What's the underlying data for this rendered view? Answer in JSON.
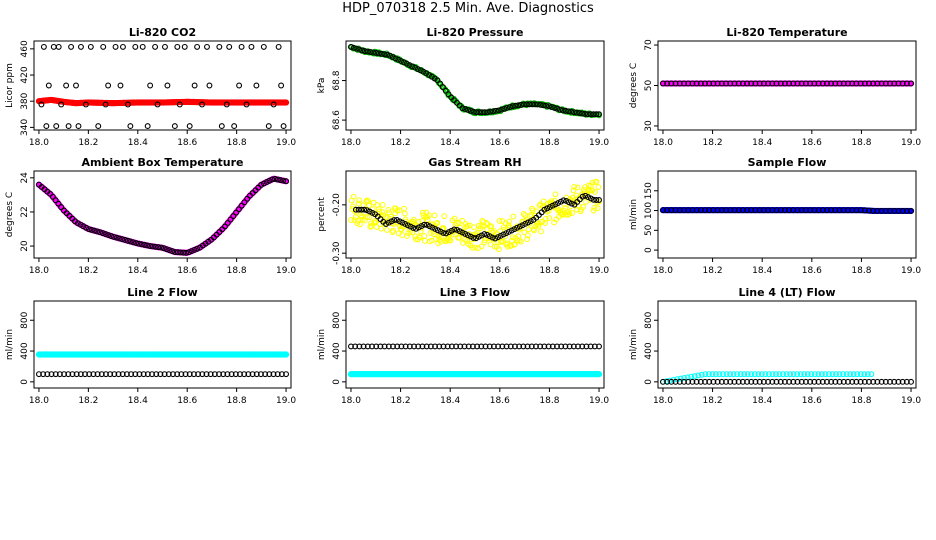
{
  "page": {
    "title": "HDP_070318  2.5 Min. Ave. Diagnostics"
  },
  "chart_data": [
    {
      "type": "scatter",
      "title": "Li-820 CO2",
      "xlabel": "",
      "ylabel": "Licor ppm",
      "xlim": [
        17.98,
        19.02
      ],
      "ylim": [
        336,
        472
      ],
      "xticks": [
        "18.0",
        "18.2",
        "18.4",
        "18.6",
        "18.8",
        "19.0"
      ],
      "yticks": [
        "340",
        "380",
        "420",
        "460"
      ],
      "grid": false,
      "series": [
        {
          "style": "dense-filled",
          "color": "#ff0000",
          "x": [
            18.0,
            18.05,
            18.1,
            18.15,
            18.2,
            18.3,
            18.4,
            18.5,
            18.6,
            18.7,
            18.8,
            18.9,
            19.0
          ],
          "y": [
            380,
            382,
            379,
            377,
            378,
            377,
            378,
            378,
            379,
            378,
            378,
            378,
            378
          ]
        },
        {
          "style": "open-circle",
          "color": "#000000",
          "x": [
            18.02,
            18.06,
            18.08,
            18.13,
            18.17,
            18.21,
            18.26,
            18.31,
            18.34,
            18.39,
            18.42,
            18.47,
            18.51,
            18.56,
            18.59,
            18.64,
            18.68,
            18.73,
            18.77,
            18.82,
            18.86,
            18.91,
            18.97,
            18.04,
            18.11,
            18.15,
            18.28,
            18.33,
            18.45,
            18.52,
            18.63,
            18.69,
            18.81,
            18.88,
            18.98,
            18.03,
            18.07,
            18.12,
            18.16,
            18.24,
            18.37,
            18.44,
            18.55,
            18.61,
            18.74,
            18.79,
            18.93,
            18.99,
            18.01,
            18.09,
            18.19,
            18.27,
            18.36,
            18.48,
            18.57,
            18.66,
            18.76,
            18.84,
            18.95
          ],
          "y": [
            463,
            463,
            463,
            463,
            463,
            463,
            463,
            463,
            463,
            463,
            463,
            463,
            463,
            463,
            463,
            463,
            463,
            463,
            463,
            463,
            463,
            463,
            463,
            404,
            404,
            404,
            404,
            404,
            404,
            404,
            404,
            404,
            404,
            404,
            404,
            342,
            342,
            342,
            342,
            342,
            342,
            342,
            342,
            342,
            342,
            342,
            342,
            342,
            375,
            375,
            375,
            375,
            375,
            375,
            375,
            375,
            375,
            375,
            375
          ]
        }
      ]
    },
    {
      "type": "scatter",
      "title": "Li-820 Pressure",
      "xlabel": "",
      "ylabel": "kPa",
      "xlim": [
        17.98,
        19.02
      ],
      "ylim": [
        68.55,
        69.0
      ],
      "xticks": [
        "18.0",
        "18.2",
        "18.4",
        "18.6",
        "18.8",
        "19.0"
      ],
      "yticks": [
        "68.6",
        "68.8"
      ],
      "grid": false,
      "series": [
        {
          "style": "dense-open",
          "color": "#00bb00",
          "x": [
            18.0,
            18.05,
            18.1,
            18.15,
            18.2,
            18.25,
            18.3,
            18.35,
            18.4,
            18.45,
            18.5,
            18.55,
            18.6,
            18.65,
            18.7,
            18.75,
            18.8,
            18.85,
            18.9,
            18.95,
            19.0
          ],
          "y": [
            68.97,
            68.95,
            68.94,
            68.93,
            68.9,
            68.87,
            68.84,
            68.8,
            68.72,
            68.66,
            68.64,
            68.64,
            68.65,
            68.67,
            68.68,
            68.68,
            68.67,
            68.65,
            68.64,
            68.63,
            68.63
          ]
        },
        {
          "style": "open-circle",
          "color": "#000000",
          "x": [
            18.0,
            18.05,
            18.1,
            18.15,
            18.2,
            18.25,
            18.3,
            18.35,
            18.4,
            18.45,
            18.5,
            18.55,
            18.6,
            18.65,
            18.7,
            18.75,
            18.8,
            18.85,
            18.9,
            18.95,
            19.0
          ],
          "y": [
            68.97,
            68.95,
            68.94,
            68.93,
            68.9,
            68.87,
            68.84,
            68.8,
            68.72,
            68.66,
            68.64,
            68.64,
            68.65,
            68.67,
            68.68,
            68.68,
            68.67,
            68.65,
            68.64,
            68.63,
            68.63
          ]
        }
      ]
    },
    {
      "type": "scatter",
      "title": "Li-820 Temperature",
      "xlabel": "",
      "ylabel": "degrees C",
      "xlim": [
        17.98,
        19.02
      ],
      "ylim": [
        28,
        72
      ],
      "xticks": [
        "18.0",
        "18.2",
        "18.4",
        "18.6",
        "18.8",
        "19.0"
      ],
      "yticks": [
        "30",
        "50",
        "70"
      ],
      "grid": false,
      "series": [
        {
          "style": "dense-filled",
          "color": "#ff00ff",
          "x": [
            18.0,
            18.2,
            18.4,
            18.6,
            18.8,
            19.0
          ],
          "y": [
            51,
            51,
            51,
            51,
            51,
            51
          ]
        },
        {
          "style": "open-circle",
          "color": "#000000",
          "x": [
            18.0,
            18.2,
            18.4,
            18.6,
            18.8,
            19.0
          ],
          "y": [
            51,
            51,
            51,
            51,
            51,
            51
          ]
        }
      ]
    },
    {
      "type": "scatter",
      "title": "Ambient Box Temperature",
      "xlabel": "",
      "ylabel": "degrees C",
      "xlim": [
        17.98,
        19.02
      ],
      "ylim": [
        19.3,
        24.4
      ],
      "xticks": [
        "18.0",
        "18.2",
        "18.4",
        "18.6",
        "18.8",
        "19.0"
      ],
      "yticks": [
        "20",
        "22",
        "24"
      ],
      "grid": false,
      "series": [
        {
          "style": "dense-filled",
          "color": "#ff00ff",
          "x": [
            18.0,
            18.05,
            18.1,
            18.15,
            18.2,
            18.25,
            18.3,
            18.35,
            18.4,
            18.45,
            18.5,
            18.55,
            18.6,
            18.65,
            18.7,
            18.75,
            18.8,
            18.85,
            18.9,
            18.95,
            19.0
          ],
          "y": [
            23.6,
            23.0,
            22.1,
            21.4,
            21.0,
            20.8,
            20.55,
            20.35,
            20.15,
            20.0,
            19.9,
            19.65,
            19.6,
            19.9,
            20.4,
            21.1,
            22.0,
            22.9,
            23.6,
            23.95,
            23.8
          ]
        },
        {
          "style": "open-circle",
          "color": "#000000",
          "x": [
            18.0,
            18.05,
            18.1,
            18.15,
            18.2,
            18.25,
            18.3,
            18.35,
            18.4,
            18.45,
            18.5,
            18.55,
            18.6,
            18.65,
            18.7,
            18.75,
            18.8,
            18.85,
            18.9,
            18.95,
            19.0
          ],
          "y": [
            23.6,
            23.0,
            22.1,
            21.4,
            21.0,
            20.8,
            20.55,
            20.35,
            20.15,
            20.0,
            19.9,
            19.65,
            19.6,
            19.9,
            20.4,
            21.1,
            22.0,
            22.9,
            23.6,
            23.95,
            23.8
          ]
        }
      ]
    },
    {
      "type": "scatter",
      "title": "Gas Stream RH",
      "xlabel": "",
      "ylabel": "percent",
      "xlim": [
        17.98,
        19.02
      ],
      "ylim": [
        -0.31,
        -0.13
      ],
      "xticks": [
        "18.0",
        "18.2",
        "18.4",
        "18.6",
        "18.8",
        "19.0"
      ],
      "yticks": [
        "-0.30",
        "-0.20"
      ],
      "grid": false,
      "series": [
        {
          "style": "noisy-open",
          "color": "#ffff00",
          "x": [
            18.0,
            18.05,
            18.1,
            18.15,
            18.2,
            18.25,
            18.3,
            18.35,
            18.4,
            18.45,
            18.5,
            18.55,
            18.6,
            18.65,
            18.7,
            18.75,
            18.8,
            18.85,
            18.9,
            18.95,
            19.0
          ],
          "y": [
            -0.205,
            -0.215,
            -0.225,
            -0.23,
            -0.235,
            -0.24,
            -0.245,
            -0.25,
            -0.25,
            -0.255,
            -0.26,
            -0.262,
            -0.262,
            -0.255,
            -0.245,
            -0.23,
            -0.215,
            -0.2,
            -0.19,
            -0.185,
            -0.18
          ]
        },
        {
          "style": "open-circle",
          "color": "#000000",
          "x": [
            18.02,
            18.06,
            18.1,
            18.14,
            18.18,
            18.22,
            18.26,
            18.3,
            18.34,
            18.38,
            18.42,
            18.46,
            18.5,
            18.54,
            18.58,
            18.62,
            18.66,
            18.7,
            18.74,
            18.78,
            18.82,
            18.86,
            18.9,
            18.94,
            18.98,
            19.0
          ],
          "y": [
            -0.21,
            -0.21,
            -0.22,
            -0.24,
            -0.23,
            -0.24,
            -0.25,
            -0.24,
            -0.25,
            -0.26,
            -0.25,
            -0.26,
            -0.27,
            -0.26,
            -0.27,
            -0.26,
            -0.25,
            -0.24,
            -0.23,
            -0.21,
            -0.2,
            -0.19,
            -0.2,
            -0.18,
            -0.19,
            -0.19
          ]
        }
      ]
    },
    {
      "type": "scatter",
      "title": "Sample Flow",
      "xlabel": "",
      "ylabel": "ml/min",
      "xlim": [
        17.98,
        19.02
      ],
      "ylim": [
        -20,
        200
      ],
      "xticks": [
        "18.0",
        "18.2",
        "18.4",
        "18.6",
        "18.8",
        "19.0"
      ],
      "yticks": [
        "0",
        "50",
        "100",
        "150"
      ],
      "grid": false,
      "series": [
        {
          "style": "dense-filled",
          "color": "#0000ff",
          "x": [
            18.0,
            18.2,
            18.4,
            18.6,
            18.8,
            18.85,
            19.0
          ],
          "y": [
            101,
            101,
            101,
            101,
            101,
            99,
            99
          ]
        },
        {
          "style": "open-circle",
          "color": "#000000",
          "x": [
            18.0,
            18.2,
            18.4,
            18.6,
            18.8,
            18.85,
            19.0
          ],
          "y": [
            101,
            101,
            101,
            101,
            101,
            99,
            99
          ]
        }
      ]
    },
    {
      "type": "scatter",
      "title": "Line 2 Flow",
      "xlabel": "",
      "ylabel": "ml/min",
      "xlim": [
        17.98,
        19.02
      ],
      "ylim": [
        -80,
        1050
      ],
      "xticks": [
        "18.0",
        "18.2",
        "18.4",
        "18.6",
        "18.8",
        "19.0"
      ],
      "yticks": [
        "0",
        "400",
        "800"
      ],
      "grid": false,
      "series": [
        {
          "style": "dense-filled",
          "color": "#00ffff",
          "x": [
            18.0,
            18.2,
            18.4,
            18.6,
            18.8,
            19.0
          ],
          "y": [
            355,
            355,
            355,
            355,
            355,
            355
          ]
        },
        {
          "style": "open-circle",
          "color": "#000000",
          "x": [
            18.0,
            18.2,
            18.4,
            18.6,
            18.8,
            19.0
          ],
          "y": [
            100,
            100,
            100,
            100,
            100,
            100
          ]
        }
      ]
    },
    {
      "type": "scatter",
      "title": "Line 3 Flow",
      "xlabel": "",
      "ylabel": "ml/min",
      "xlim": [
        17.98,
        19.02
      ],
      "ylim": [
        -80,
        1050
      ],
      "xticks": [
        "18.0",
        "18.2",
        "18.4",
        "18.6",
        "18.8",
        "19.0"
      ],
      "yticks": [
        "0",
        "400",
        "800"
      ],
      "grid": false,
      "series": [
        {
          "style": "dense-filled",
          "color": "#00ffff",
          "x": [
            18.0,
            18.2,
            18.4,
            18.6,
            18.8,
            19.0
          ],
          "y": [
            100,
            100,
            100,
            100,
            100,
            100
          ]
        },
        {
          "style": "open-circle",
          "color": "#000000",
          "x": [
            18.0,
            18.2,
            18.4,
            18.6,
            18.8,
            19.0
          ],
          "y": [
            460,
            460,
            460,
            460,
            460,
            460
          ]
        }
      ]
    },
    {
      "type": "scatter",
      "title": "Line 4 (LT) Flow",
      "xlabel": "",
      "ylabel": "ml/min",
      "xlim": [
        17.98,
        19.02
      ],
      "ylim": [
        -80,
        1050
      ],
      "xticks": [
        "18.0",
        "18.2",
        "18.4",
        "18.6",
        "18.8",
        "19.0"
      ],
      "yticks": [
        "0",
        "400",
        "800"
      ],
      "grid": false,
      "series": [
        {
          "style": "open-circle",
          "color": "#00ffff",
          "x": [
            18.0,
            18.17,
            18.5,
            18.84
          ],
          "y": [
            0,
            100,
            100,
            100
          ]
        },
        {
          "style": "open-circle",
          "color": "#000000",
          "x": [
            18.0,
            18.2,
            18.4,
            18.6,
            18.8,
            19.0
          ],
          "y": [
            0,
            0,
            0,
            0,
            0,
            0
          ]
        }
      ]
    }
  ]
}
